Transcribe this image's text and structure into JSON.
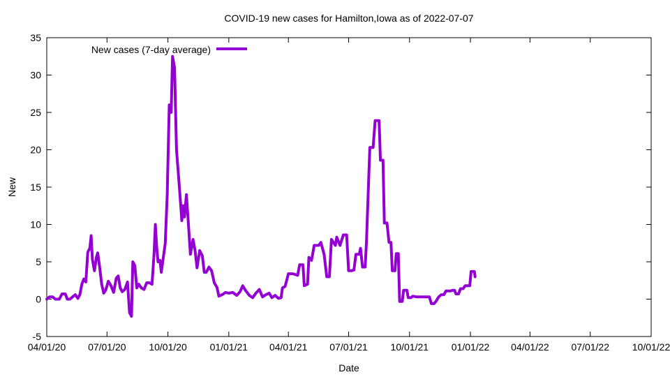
{
  "chart_data": {
    "type": "line",
    "title": "COVID-19 new cases for Hamilton,Iowa as of 2022-07-07",
    "xlabel": "Date",
    "ylabel": "New",
    "xlim": [
      "2020-04-01",
      "2022-10-01"
    ],
    "ylim": [
      -5,
      35
    ],
    "x_tick_labels": [
      "04/01/20",
      "07/01/20",
      "10/01/20",
      "01/01/21",
      "04/01/21",
      "07/01/21",
      "10/01/21",
      "01/01/22",
      "04/01/22",
      "07/01/22",
      "10/01/22"
    ],
    "x_ticks": [
      "2020-04-01",
      "2020-07-01",
      "2020-10-01",
      "2021-01-01",
      "2021-04-01",
      "2021-07-01",
      "2021-10-01",
      "2022-01-01",
      "2022-04-01",
      "2022-07-01",
      "2022-10-01"
    ],
    "y_ticks": [
      -5,
      0,
      5,
      10,
      15,
      20,
      25,
      30,
      35
    ],
    "grid": false,
    "legend_position": "top-left",
    "series": [
      {
        "name": "New cases (7-day average)",
        "color": "#9400d3",
        "points": [
          [
            "2020-04-01",
            0.0
          ],
          [
            "2020-04-05",
            0.3
          ],
          [
            "2020-04-10",
            0.3
          ],
          [
            "2020-04-14",
            0.0
          ],
          [
            "2020-04-20",
            0.0
          ],
          [
            "2020-04-24",
            0.7
          ],
          [
            "2020-04-29",
            0.7
          ],
          [
            "2020-05-02",
            0.0
          ],
          [
            "2020-05-06",
            0.0
          ],
          [
            "2020-05-10",
            0.3
          ],
          [
            "2020-05-14",
            0.6
          ],
          [
            "2020-05-18",
            0.1
          ],
          [
            "2020-05-21",
            0.6
          ],
          [
            "2020-05-24",
            2.0
          ],
          [
            "2020-05-27",
            2.7
          ],
          [
            "2020-05-30",
            2.3
          ],
          [
            "2020-06-02",
            6.3
          ],
          [
            "2020-06-05",
            6.8
          ],
          [
            "2020-06-07",
            8.5
          ],
          [
            "2020-06-09",
            5.3
          ],
          [
            "2020-06-12",
            3.8
          ],
          [
            "2020-06-15",
            5.6
          ],
          [
            "2020-06-17",
            6.2
          ],
          [
            "2020-06-20",
            4.2
          ],
          [
            "2020-06-23",
            2.0
          ],
          [
            "2020-06-26",
            0.8
          ],
          [
            "2020-06-29",
            1.2
          ],
          [
            "2020-07-03",
            2.4
          ],
          [
            "2020-07-07",
            1.8
          ],
          [
            "2020-07-11",
            0.9
          ],
          [
            "2020-07-15",
            2.8
          ],
          [
            "2020-07-18",
            3.1
          ],
          [
            "2020-07-21",
            1.5
          ],
          [
            "2020-07-24",
            1.0
          ],
          [
            "2020-07-28",
            1.3
          ],
          [
            "2020-08-01",
            2.3
          ],
          [
            "2020-08-04",
            -1.8
          ],
          [
            "2020-08-07",
            -2.3
          ],
          [
            "2020-08-09",
            5.0
          ],
          [
            "2020-08-12",
            4.5
          ],
          [
            "2020-08-15",
            1.5
          ],
          [
            "2020-08-18",
            2.0
          ],
          [
            "2020-08-22",
            1.5
          ],
          [
            "2020-08-26",
            1.3
          ],
          [
            "2020-08-30",
            2.2
          ],
          [
            "2020-09-03",
            2.2
          ],
          [
            "2020-09-07",
            2.0
          ],
          [
            "2020-09-10",
            6.0
          ],
          [
            "2020-09-12",
            10.0
          ],
          [
            "2020-09-14",
            7.0
          ],
          [
            "2020-09-16",
            5.0
          ],
          [
            "2020-09-19",
            5.2
          ],
          [
            "2020-09-21",
            3.6
          ],
          [
            "2020-09-24",
            5.5
          ],
          [
            "2020-09-27",
            7.5
          ],
          [
            "2020-09-30",
            14.0
          ],
          [
            "2020-10-03",
            26.0
          ],
          [
            "2020-10-06",
            25.0
          ],
          [
            "2020-10-08",
            32.5
          ],
          [
            "2020-10-11",
            31.0
          ],
          [
            "2020-10-14",
            20.0
          ],
          [
            "2020-10-17",
            16.5
          ],
          [
            "2020-10-20",
            13.0
          ],
          [
            "2020-10-22",
            10.5
          ],
          [
            "2020-10-24",
            12.5
          ],
          [
            "2020-10-26",
            11.0
          ],
          [
            "2020-10-29",
            14.0
          ],
          [
            "2020-11-01",
            10.0
          ],
          [
            "2020-11-04",
            6.0
          ],
          [
            "2020-11-08",
            8.0
          ],
          [
            "2020-11-11",
            6.5
          ],
          [
            "2020-11-14",
            4.2
          ],
          [
            "2020-11-18",
            6.5
          ],
          [
            "2020-11-22",
            5.8
          ],
          [
            "2020-11-25",
            3.6
          ],
          [
            "2020-11-28",
            3.6
          ],
          [
            "2020-12-02",
            4.3
          ],
          [
            "2020-12-06",
            3.8
          ],
          [
            "2020-12-10",
            2.2
          ],
          [
            "2020-12-14",
            1.6
          ],
          [
            "2020-12-17",
            0.4
          ],
          [
            "2020-12-22",
            0.6
          ],
          [
            "2020-12-27",
            0.9
          ],
          [
            "2021-01-01",
            0.8
          ],
          [
            "2021-01-07",
            0.9
          ],
          [
            "2021-01-13",
            0.5
          ],
          [
            "2021-01-18",
            1.0
          ],
          [
            "2021-01-22",
            1.8
          ],
          [
            "2021-01-26",
            1.2
          ],
          [
            "2021-02-01",
            0.5
          ],
          [
            "2021-02-06",
            0.2
          ],
          [
            "2021-02-11",
            0.8
          ],
          [
            "2021-02-16",
            1.3
          ],
          [
            "2021-02-21",
            0.3
          ],
          [
            "2021-02-26",
            0.6
          ],
          [
            "2021-03-03",
            0.8
          ],
          [
            "2021-03-07",
            0.2
          ],
          [
            "2021-03-12",
            0.5
          ],
          [
            "2021-03-17",
            0.1
          ],
          [
            "2021-03-21",
            0.2
          ],
          [
            "2021-03-23",
            1.5
          ],
          [
            "2021-03-27",
            1.7
          ],
          [
            "2021-04-01",
            3.4
          ],
          [
            "2021-04-08",
            3.4
          ],
          [
            "2021-04-15",
            3.2
          ],
          [
            "2021-04-18",
            4.6
          ],
          [
            "2021-04-23",
            4.6
          ],
          [
            "2021-04-25",
            1.8
          ],
          [
            "2021-04-30",
            2.0
          ],
          [
            "2021-05-02",
            5.6
          ],
          [
            "2021-05-06",
            5.2
          ],
          [
            "2021-05-10",
            7.2
          ],
          [
            "2021-05-17",
            7.2
          ],
          [
            "2021-05-20",
            7.6
          ],
          [
            "2021-05-25",
            6.0
          ],
          [
            "2021-05-29",
            3.0
          ],
          [
            "2021-06-02",
            3.0
          ],
          [
            "2021-06-05",
            8.0
          ],
          [
            "2021-06-11",
            7.2
          ],
          [
            "2021-06-13",
            8.3
          ],
          [
            "2021-06-18",
            7.2
          ],
          [
            "2021-06-23",
            8.6
          ],
          [
            "2021-06-28",
            8.6
          ],
          [
            "2021-07-01",
            3.8
          ],
          [
            "2021-07-05",
            3.8
          ],
          [
            "2021-07-09",
            3.9
          ],
          [
            "2021-07-12",
            6.0
          ],
          [
            "2021-07-17",
            6.0
          ],
          [
            "2021-07-19",
            6.8
          ],
          [
            "2021-07-22",
            4.3
          ],
          [
            "2021-07-26",
            4.3
          ],
          [
            "2021-07-28",
            7.7
          ],
          [
            "2021-08-02",
            20.3
          ],
          [
            "2021-08-07",
            20.3
          ],
          [
            "2021-08-10",
            23.9
          ],
          [
            "2021-08-16",
            23.9
          ],
          [
            "2021-08-18",
            18.6
          ],
          [
            "2021-08-22",
            18.6
          ],
          [
            "2021-08-24",
            10.2
          ],
          [
            "2021-08-28",
            10.2
          ],
          [
            "2021-08-31",
            7.6
          ],
          [
            "2021-09-03",
            7.6
          ],
          [
            "2021-09-05",
            3.8
          ],
          [
            "2021-09-09",
            3.8
          ],
          [
            "2021-09-11",
            6.1
          ],
          [
            "2021-09-14",
            6.1
          ],
          [
            "2021-09-16",
            -0.3
          ],
          [
            "2021-09-20",
            -0.3
          ],
          [
            "2021-09-22",
            1.2
          ],
          [
            "2021-09-27",
            1.2
          ],
          [
            "2021-09-29",
            0.2
          ],
          [
            "2021-10-03",
            0.2
          ],
          [
            "2021-10-06",
            0.4
          ],
          [
            "2021-10-12",
            0.3
          ],
          [
            "2021-10-20",
            0.3
          ],
          [
            "2021-10-31",
            0.3
          ],
          [
            "2021-11-03",
            -0.6
          ],
          [
            "2021-11-07",
            -0.6
          ],
          [
            "2021-11-10",
            -0.3
          ],
          [
            "2021-11-14",
            0.3
          ],
          [
            "2021-11-18",
            0.6
          ],
          [
            "2021-11-22",
            0.6
          ],
          [
            "2021-11-25",
            1.1
          ],
          [
            "2021-12-02",
            1.1
          ],
          [
            "2021-12-05",
            1.2
          ],
          [
            "2021-12-08",
            1.2
          ],
          [
            "2021-12-10",
            0.7
          ],
          [
            "2021-12-14",
            0.7
          ],
          [
            "2021-12-17",
            1.4
          ],
          [
            "2021-12-21",
            1.4
          ],
          [
            "2021-12-24",
            1.8
          ],
          [
            "2021-12-31",
            1.8
          ],
          [
            "2022-01-02",
            3.7
          ],
          [
            "2022-01-07",
            3.7
          ],
          [
            "2022-01-08",
            3.0
          ]
        ]
      }
    ]
  }
}
